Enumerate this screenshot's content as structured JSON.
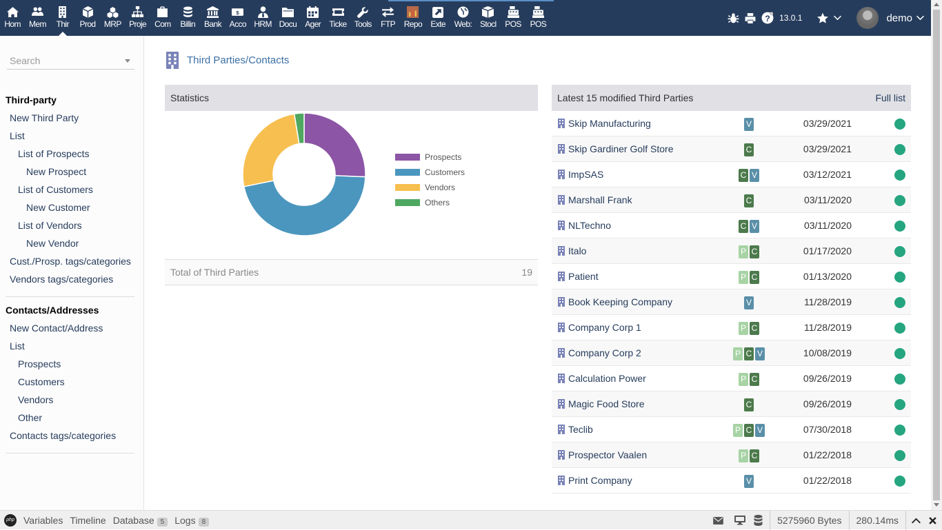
{
  "modules": [
    {
      "label": "Hom",
      "icon": "home-icon"
    },
    {
      "label": "Mem",
      "icon": "members-icon"
    },
    {
      "label": "Thir",
      "icon": "building-icon",
      "active": true
    },
    {
      "label": "Prod",
      "icon": "cube-icon"
    },
    {
      "label": "MRP",
      "icon": "cubes-icon"
    },
    {
      "label": "Proje",
      "icon": "sitemap-icon"
    },
    {
      "label": "Com",
      "icon": "briefcase-icon"
    },
    {
      "label": "Billin",
      "icon": "coins-icon"
    },
    {
      "label": "Bank",
      "icon": "bank-icon"
    },
    {
      "label": "Acco",
      "icon": "money-icon"
    },
    {
      "label": "HRM",
      "icon": "user-tie-icon"
    },
    {
      "label": "Docu",
      "icon": "folder-icon"
    },
    {
      "label": "Ager",
      "icon": "calendar-icon"
    },
    {
      "label": "Ticke",
      "icon": "ticket-icon"
    },
    {
      "label": "Tools",
      "icon": "wrench-icon"
    },
    {
      "label": "FTP",
      "icon": "exchange-icon"
    },
    {
      "label": "Repo",
      "icon": "report-icon"
    },
    {
      "label": "Exte",
      "icon": "external-link-icon"
    },
    {
      "label": "Web:",
      "icon": "globe-icon"
    },
    {
      "label": "Stocl",
      "icon": "box-icon"
    },
    {
      "label": "POS",
      "icon": "cash-register-icon"
    },
    {
      "label": "POS",
      "icon": "cash-register-icon"
    }
  ],
  "topbar": {
    "version": "13.0.1",
    "user": "demo"
  },
  "sidebar": {
    "search_placeholder": "Search",
    "menu1": [
      {
        "label": "Third-party",
        "level": "hd"
      },
      {
        "label": "New Third Party",
        "level": "l0"
      },
      {
        "label": "List",
        "level": "l0"
      },
      {
        "label": "List of Prospects",
        "level": "l1"
      },
      {
        "label": "New Prospect",
        "level": "l2"
      },
      {
        "label": "List of Customers",
        "level": "l1"
      },
      {
        "label": "New Customer",
        "level": "l2"
      },
      {
        "label": "List of Vendors",
        "level": "l1"
      },
      {
        "label": "New Vendor",
        "level": "l2"
      },
      {
        "label": "Cust./Prosp. tags/categories",
        "level": "l0"
      },
      {
        "label": "Vendors tags/categories",
        "level": "l0"
      }
    ],
    "menu2": [
      {
        "label": "Contacts/Addresses",
        "level": "hd"
      },
      {
        "label": "New Contact/Address",
        "level": "l0"
      },
      {
        "label": "List",
        "level": "l0"
      },
      {
        "label": "Prospects",
        "level": "l1"
      },
      {
        "label": "Customers",
        "level": "l1"
      },
      {
        "label": "Vendors",
        "level": "l1"
      },
      {
        "label": "Other",
        "level": "l1"
      },
      {
        "label": "Contacts tags/categories",
        "level": "l0"
      }
    ]
  },
  "page": {
    "title": "Third Parties/Contacts"
  },
  "statistics": {
    "title": "Statistics",
    "total_label": "Total of Third Parties",
    "total_value": "19"
  },
  "chart_data": {
    "type": "pie",
    "categories": [
      "Prospects",
      "Customers",
      "Vendors",
      "Others"
    ],
    "values": [
      5,
      9,
      5,
      0.5
    ],
    "colors": [
      "#8c55a6",
      "#4b96be",
      "#f7bf4f",
      "#4fa860"
    ],
    "legend_position": "right"
  },
  "latest": {
    "title": "Latest 15 modified Third Parties",
    "full_list": "Full list",
    "rows": [
      {
        "name": "Skip Manufacturing",
        "tags": [
          "V"
        ],
        "date": "03/29/2021"
      },
      {
        "name": "Skip Gardiner Golf Store",
        "tags": [
          "C"
        ],
        "date": "03/29/2021"
      },
      {
        "name": "ImpSAS",
        "tags": [
          "C",
          "V"
        ],
        "date": "03/12/2021"
      },
      {
        "name": "Marshall Frank",
        "tags": [
          "C"
        ],
        "date": "03/11/2020"
      },
      {
        "name": "NLTechno",
        "tags": [
          "C",
          "V"
        ],
        "date": "03/11/2020"
      },
      {
        "name": "Italo",
        "tags": [
          "P",
          "C"
        ],
        "date": "01/17/2020"
      },
      {
        "name": "Patient",
        "tags": [
          "P",
          "C"
        ],
        "date": "01/13/2020"
      },
      {
        "name": "Book Keeping Company",
        "tags": [
          "V"
        ],
        "date": "11/28/2019"
      },
      {
        "name": "Company Corp 1",
        "tags": [
          "P",
          "C"
        ],
        "date": "11/28/2019"
      },
      {
        "name": "Company Corp 2",
        "tags": [
          "P",
          "C",
          "V"
        ],
        "date": "10/08/2019"
      },
      {
        "name": "Calculation Power",
        "tags": [
          "P",
          "C"
        ],
        "date": "09/26/2019"
      },
      {
        "name": "Magic Food Store",
        "tags": [
          "C"
        ],
        "date": "09/26/2019"
      },
      {
        "name": "Teclib",
        "tags": [
          "P",
          "C",
          "V"
        ],
        "date": "07/30/2018"
      },
      {
        "name": "Prospector Vaalen",
        "tags": [
          "P",
          "C"
        ],
        "date": "01/22/2018"
      },
      {
        "name": "Print Company",
        "tags": [
          "V"
        ],
        "date": "01/22/2018"
      }
    ]
  },
  "debugbar": {
    "items": [
      {
        "label": "Variables"
      },
      {
        "label": "Timeline"
      },
      {
        "label": "Database",
        "badge": "5"
      },
      {
        "label": "Logs",
        "badge": "8"
      }
    ],
    "memory": "5275960 Bytes",
    "time": "280.14ms"
  }
}
